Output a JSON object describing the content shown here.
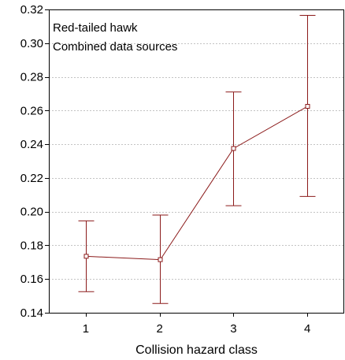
{
  "chart_data": {
    "type": "line",
    "title": "",
    "xlabel": "Collision hazard class",
    "ylabel": "",
    "annotations": [
      "Red-tailed hawk",
      "Combined data sources"
    ],
    "x": [
      1,
      2,
      3,
      4
    ],
    "x_tick_labels": [
      "1",
      "2",
      "3",
      "4"
    ],
    "xlim": [
      0.5,
      4.5
    ],
    "ylim": [
      0.14,
      0.32
    ],
    "y_ticks": [
      0.14,
      0.16,
      0.18,
      0.2,
      0.22,
      0.24,
      0.26,
      0.28,
      0.3,
      0.32
    ],
    "y_tick_labels": [
      "0.14",
      "0.16",
      "0.18",
      "0.20",
      "0.22",
      "0.24",
      "0.26",
      "0.28",
      "0.30",
      "0.32"
    ],
    "grid": "horizontal dashed",
    "series": [
      {
        "values": [
          0.1735,
          0.1715,
          0.2375,
          0.2625
        ],
        "lower": [
          0.1525,
          0.1455,
          0.2035,
          0.209
        ],
        "upper": [
          0.1945,
          0.198,
          0.271,
          0.3165
        ]
      }
    ],
    "colors": {
      "series": "#8b1a1a",
      "axis": "#000000",
      "grid": "#b0b0b0"
    }
  }
}
